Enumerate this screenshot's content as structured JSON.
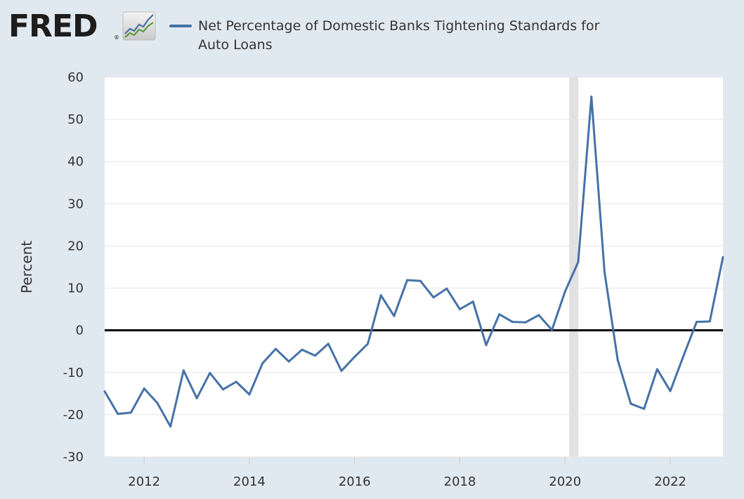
{
  "header": {
    "logo_text": "FRED",
    "logo_reg": "®",
    "legend_label": "Net Percentage of Domestic Banks Tightening Standards for Auto Loans",
    "series_color": "#4572a7"
  },
  "chart_data": {
    "type": "line",
    "title": "",
    "ylabel": "Percent",
    "xlabel": "",
    "xlim": [
      2011.25,
      2023.0
    ],
    "ylim": [
      -30,
      60
    ],
    "yticks": [
      60,
      50,
      40,
      30,
      20,
      10,
      0,
      -10,
      -20,
      -30
    ],
    "ytick_labels": [
      "60",
      "50",
      "40",
      "30",
      "20",
      "10",
      "0",
      "-10",
      "-20",
      "-30"
    ],
    "xticks": [
      2012,
      2014,
      2016,
      2018,
      2020,
      2022
    ],
    "xtick_labels": [
      "2012",
      "2014",
      "2016",
      "2018",
      "2020",
      "2022"
    ],
    "grid": true,
    "recession_shading": [
      [
        2020.08,
        2020.25
      ]
    ],
    "zero_line": true,
    "series": [
      {
        "name": "Net Percentage of Domestic Banks Tightening Standards for Auto Loans",
        "color": "#4572a7",
        "x": [
          2011.25,
          2011.5,
          2011.75,
          2012.0,
          2012.25,
          2012.5,
          2012.75,
          2013.0,
          2013.25,
          2013.5,
          2013.75,
          2014.0,
          2014.25,
          2014.5,
          2014.75,
          2015.0,
          2015.25,
          2015.5,
          2015.75,
          2016.0,
          2016.25,
          2016.5,
          2016.75,
          2017.0,
          2017.25,
          2017.5,
          2017.75,
          2018.0,
          2018.25,
          2018.5,
          2018.75,
          2019.0,
          2019.25,
          2019.5,
          2019.75,
          2020.0,
          2020.25,
          2020.5,
          2020.75,
          2021.0,
          2021.25,
          2021.5,
          2021.75,
          2022.0,
          2022.25,
          2022.5,
          2022.75,
          2023.0
        ],
        "y": [
          -14.5,
          -19.8,
          -19.5,
          -13.8,
          -17.2,
          -22.8,
          -9.5,
          -16.1,
          -10.1,
          -14.0,
          -12.2,
          -15.2,
          -7.8,
          -4.4,
          -7.4,
          -4.6,
          -6.0,
          -3.2,
          -9.6,
          -6.3,
          -3.2,
          8.3,
          3.4,
          11.9,
          11.7,
          7.8,
          9.9,
          5.0,
          6.8,
          -3.5,
          3.8,
          2.0,
          1.9,
          3.6,
          0.1,
          9.2,
          16.2,
          55.4,
          13.8,
          -7.0,
          -17.4,
          -18.6,
          -9.2,
          -14.4,
          -6.1,
          2.0,
          2.1,
          17.3
        ]
      }
    ]
  }
}
